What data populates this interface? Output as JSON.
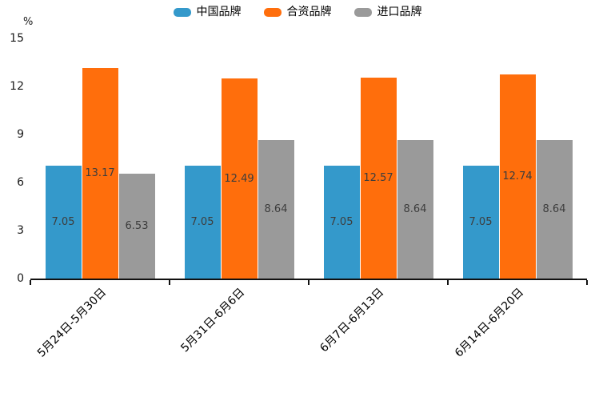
{
  "chart_data": {
    "type": "bar",
    "title": "",
    "ylabel": "%",
    "xlabel": "",
    "categories": [
      "5月24日-5月30日",
      "5月31日-6月6日",
      "6月7日-6月13日",
      "6月14日-6月20日"
    ],
    "series": [
      {
        "name": "中国品牌",
        "color": "#3499CB",
        "values": [
          7.05,
          7.05,
          7.05,
          7.05
        ]
      },
      {
        "name": "合资品牌",
        "color": "#FF6E0C",
        "values": [
          13.17,
          12.49,
          12.57,
          12.74
        ]
      },
      {
        "name": "进口品牌",
        "color": "#9A9A9A",
        "values": [
          6.53,
          8.64,
          8.64,
          8.64
        ]
      }
    ],
    "ylim": [
      0,
      15
    ],
    "yticks": [
      0,
      3,
      6,
      9,
      12,
      15
    ],
    "grid": false,
    "legend_position": "top",
    "value_label_position": "inside-center",
    "axis_color": "#111111",
    "value_label_color": "#3d3d3d"
  }
}
